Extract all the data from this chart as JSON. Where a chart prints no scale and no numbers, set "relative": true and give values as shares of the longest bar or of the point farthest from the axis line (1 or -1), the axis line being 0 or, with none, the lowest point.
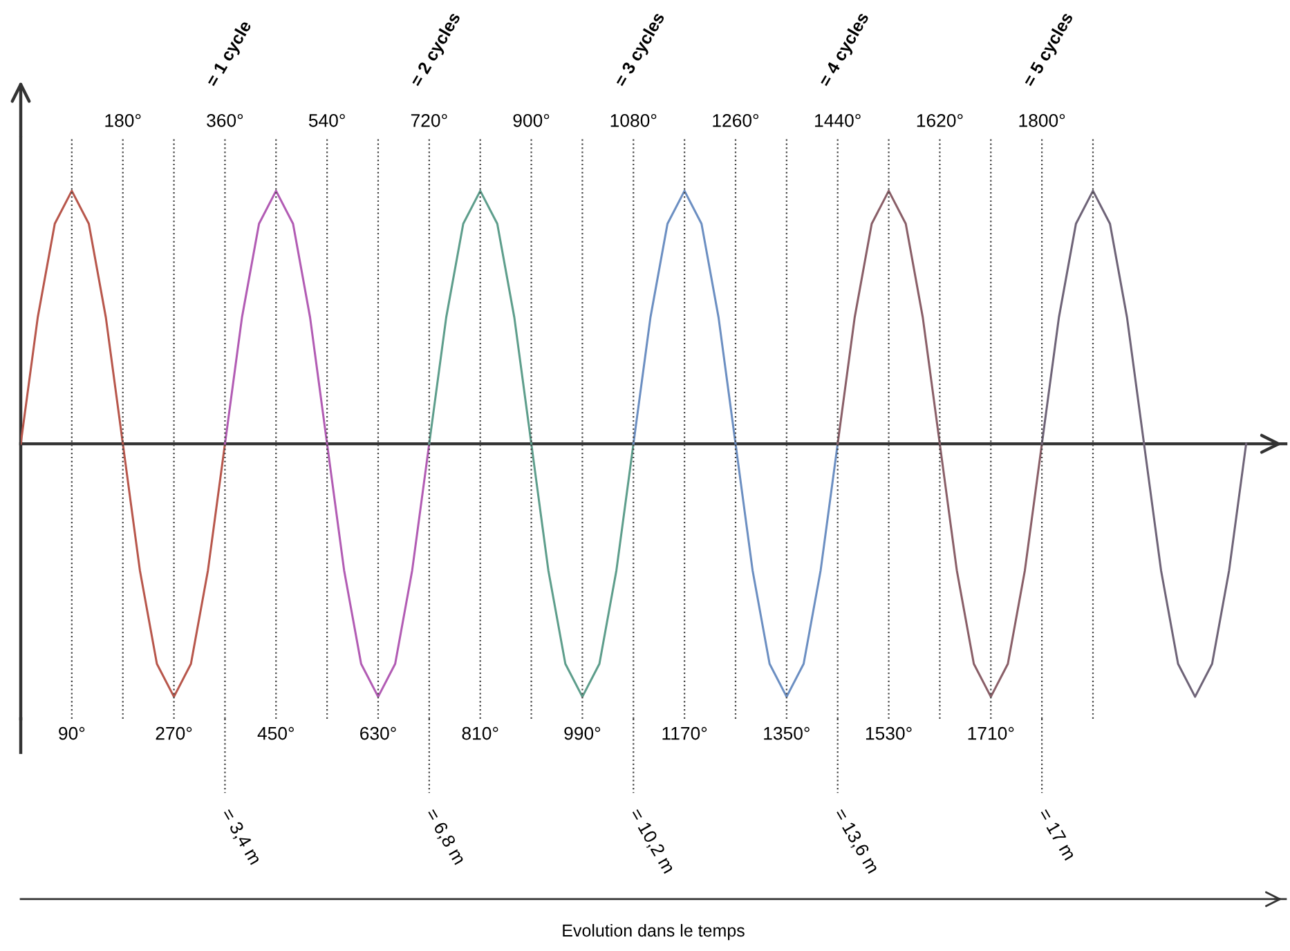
{
  "chart_data": {
    "type": "line",
    "relative": true,
    "grid": "x",
    "marker": "none",
    "line_style": "solid",
    "xlim": [
      0,
      2230
    ],
    "x2lim": [
      0,
      2230
    ],
    "xticks": [
      {
        "value": 90,
        "label": "90°"
      },
      {
        "value": 270,
        "label": "270°"
      },
      {
        "value": 450,
        "label": "450°"
      },
      {
        "value": 630,
        "label": "630°"
      },
      {
        "value": 810,
        "label": "810°"
      },
      {
        "value": 990,
        "label": "990°"
      },
      {
        "value": 1170,
        "label": "1170°"
      },
      {
        "value": 1350,
        "label": "1350°"
      },
      {
        "value": 1530,
        "label": "1530°"
      },
      {
        "value": 1710,
        "label": "1710°"
      },
      {
        "value": 1890,
        "label": null
      }
    ],
    "x2ticks": [
      {
        "value": 180,
        "label": "180°"
      },
      {
        "value": 360,
        "label": "360°"
      },
      {
        "value": 540,
        "label": "540°"
      },
      {
        "value": 720,
        "label": "720°"
      },
      {
        "value": 900,
        "label": "900°"
      },
      {
        "value": 1080,
        "label": "1080°"
      },
      {
        "value": 1260,
        "label": "1260°"
      },
      {
        "value": 1440,
        "label": "1440°"
      },
      {
        "value": 1620,
        "label": "1620°"
      },
      {
        "value": 1800,
        "label": "1800°"
      }
    ],
    "series": [
      {
        "color": "#b8574c",
        "x": [
          0,
          30,
          60,
          90,
          120,
          150,
          180,
          210,
          240,
          270,
          300,
          330,
          360
        ],
        "values": [
          0,
          0.5,
          0.87,
          1,
          0.87,
          0.5,
          0,
          -0.5,
          -0.87,
          -1,
          -0.87,
          -0.5,
          0
        ]
      },
      {
        "color": "#b25cb4",
        "x": [
          360,
          390,
          420,
          450,
          480,
          510,
          540,
          570,
          600,
          630,
          660,
          690,
          720
        ],
        "values": [
          0,
          0.5,
          0.87,
          1,
          0.87,
          0.5,
          0,
          -0.5,
          -0.87,
          -1,
          -0.87,
          -0.5,
          0
        ]
      },
      {
        "color": "#5e9e8c",
        "x": [
          720,
          750,
          780,
          810,
          840,
          870,
          900,
          930,
          960,
          990,
          1020,
          1050,
          1080
        ],
        "values": [
          0,
          0.5,
          0.87,
          1,
          0.87,
          0.5,
          0,
          -0.5,
          -0.87,
          -1,
          -0.87,
          -0.5,
          0
        ]
      },
      {
        "color": "#6c8fc2",
        "x": [
          1080,
          1110,
          1140,
          1170,
          1200,
          1230,
          1260,
          1290,
          1320,
          1350,
          1380,
          1410,
          1440
        ],
        "values": [
          0,
          0.5,
          0.87,
          1,
          0.87,
          0.5,
          0,
          -0.5,
          -0.87,
          -1,
          -0.87,
          -0.5,
          0
        ]
      },
      {
        "color": "#8a5f68",
        "x": [
          1440,
          1470,
          1500,
          1530,
          1560,
          1590,
          1620,
          1650,
          1680,
          1710,
          1740,
          1770,
          1800
        ],
        "values": [
          0,
          0.5,
          0.87,
          1,
          0.87,
          0.5,
          0,
          -0.5,
          -0.87,
          -1,
          -0.87,
          -0.5,
          0
        ]
      },
      {
        "color": "#6f6478",
        "x": [
          1800,
          1830,
          1860,
          1890,
          1920,
          1950,
          1980,
          2010,
          2040,
          2070,
          2100,
          2130,
          2160
        ],
        "values": [
          0,
          0.5,
          0.87,
          1,
          0.87,
          0.5,
          0,
          -0.5,
          -0.87,
          -1,
          -0.87,
          -0.5,
          0
        ]
      }
    ],
    "annotations": [
      "= 1 cycle",
      "= 3,4 m",
      "= 2 cycles",
      "= 6,8 m",
      "= 3 cycles",
      "= 10,2 m",
      "= 4 cycles",
      "= 13,6 m",
      "= 5 cycles",
      "= 17 m",
      "Evolution dans le temps"
    ]
  }
}
